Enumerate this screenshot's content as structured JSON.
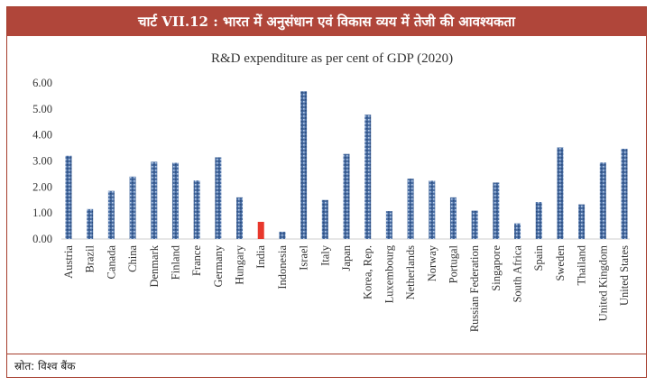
{
  "header": {
    "title": "चार्ट VII.12 : भारत में अनुसंधान एवं विकास व्यय में तेजी की आवश्यकता"
  },
  "footer": {
    "source": "स्रोत: विश्व बैंक"
  },
  "colors": {
    "bar": "#4a6fa5",
    "highlight": "#e8382c",
    "frame": "#b0463a"
  },
  "chart_data": {
    "type": "bar",
    "title": "R&D expenditure as per cent of GDP (2020)",
    "xlabel": "",
    "ylabel": "",
    "ylim": [
      0,
      6
    ],
    "yticks": [
      "0.00",
      "1.00",
      "2.00",
      "3.00",
      "4.00",
      "5.00",
      "6.00"
    ],
    "grid": false,
    "legend": "none",
    "highlight_category": "India",
    "categories": [
      "Austria",
      "Brazil",
      "Canada",
      "China",
      "Denmark",
      "Finland",
      "France",
      "Germany",
      "Hungary",
      "India",
      "Indonesia",
      "Israel",
      "Italy",
      "Japan",
      "Korea, Rep.",
      "Luxembourg",
      "Netherlands",
      "Norway",
      "Portugal",
      "Russian Federation",
      "Singapore",
      "South Africa",
      "Spain",
      "Sweden",
      "Thailand",
      "United Kingdom",
      "United States"
    ],
    "values": [
      3.2,
      1.15,
      1.85,
      2.4,
      2.97,
      2.93,
      2.25,
      3.14,
      1.6,
      0.66,
      0.28,
      5.68,
      1.5,
      3.27,
      4.78,
      1.07,
      2.32,
      2.24,
      1.6,
      1.09,
      2.17,
      0.6,
      1.42,
      3.52,
      1.33,
      2.94,
      3.47
    ]
  }
}
